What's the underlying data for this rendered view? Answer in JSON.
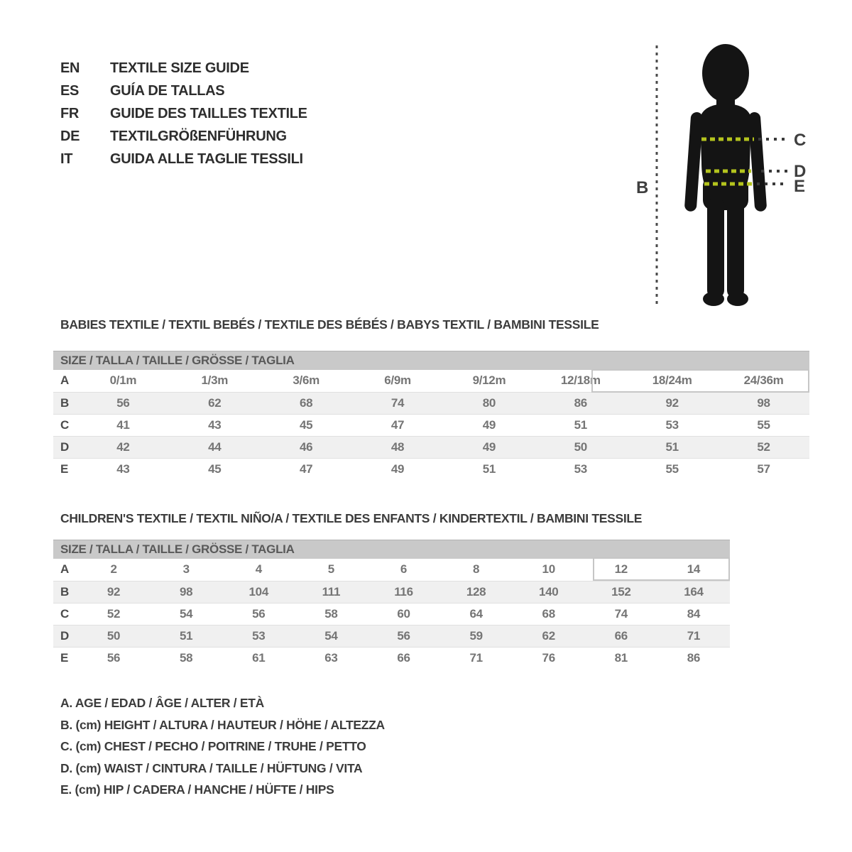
{
  "header": {
    "languages": [
      {
        "code": "EN",
        "label": "TEXTILE SIZE GUIDE"
      },
      {
        "code": "ES",
        "label": "GUÍA DE TALLAS"
      },
      {
        "code": "FR",
        "label": "GUIDE DES TAILLES TEXTILE"
      },
      {
        "code": "DE",
        "label": "TEXTILGRÖßENFÜHRUNG"
      },
      {
        "code": "IT",
        "label": "GUIDA ALLE TAGLIE TESSILI"
      }
    ]
  },
  "figure": {
    "height_label": "B",
    "chest_label": "C",
    "waist_label": "D",
    "hip_label": "E",
    "silhouette_color": "#141414",
    "measure_dash_color": "#b4c41e",
    "connector_dash_color": "#3a3a3a"
  },
  "babies_table": {
    "heading": "BABIES TEXTILE / TEXTIL BEBÉS / TEXTILE DES BÉBÉS / BABYS TEXTIL  / BAMBINI TESSILE",
    "size_header": "SIZE / TALLA / TAILLE / GRÖSSE / TAGLIA",
    "rows": [
      {
        "label": "A",
        "cells": [
          "0/1m",
          "1/3m",
          "3/6m",
          "6/9m",
          "9/12m",
          "12/18m",
          "18/24m",
          "24/36m"
        ]
      },
      {
        "label": "B",
        "cells": [
          "56",
          "62",
          "68",
          "74",
          "80",
          "86",
          "92",
          "98"
        ]
      },
      {
        "label": "C",
        "cells": [
          "41",
          "43",
          "45",
          "47",
          "49",
          "51",
          "53",
          "55"
        ]
      },
      {
        "label": "D",
        "cells": [
          "42",
          "44",
          "46",
          "48",
          "49",
          "50",
          "51",
          "52"
        ]
      },
      {
        "label": "E",
        "cells": [
          "43",
          "45",
          "47",
          "49",
          "51",
          "53",
          "55",
          "57"
        ]
      }
    ]
  },
  "children_table": {
    "heading": "CHILDREN'S TEXTILE / TEXTIL NIÑO/A / TEXTILE DES ENFANTS / KINDERTEXTIL / BAMBINI TESSILE",
    "size_header": "SIZE / TALLA / TAILLE / GRÖSSE / TAGLIA",
    "rows": [
      {
        "label": "A",
        "cells": [
          "2",
          "3",
          "4",
          "5",
          "6",
          "8",
          "10",
          "12",
          "14"
        ]
      },
      {
        "label": "B",
        "cells": [
          "92",
          "98",
          "104",
          "111",
          "116",
          "128",
          "140",
          "152",
          "164"
        ]
      },
      {
        "label": "C",
        "cells": [
          "52",
          "54",
          "56",
          "58",
          "60",
          "64",
          "68",
          "74",
          "84"
        ]
      },
      {
        "label": "D",
        "cells": [
          "50",
          "51",
          "53",
          "54",
          "56",
          "59",
          "62",
          "66",
          "71"
        ]
      },
      {
        "label": "E",
        "cells": [
          "56",
          "58",
          "61",
          "63",
          "66",
          "71",
          "76",
          "81",
          "86"
        ]
      }
    ]
  },
  "legend": {
    "items": [
      "A. AGE / EDAD / ÂGE / ALTER / ETÀ",
      "B. (cm) HEIGHT / ALTURA / HAUTEUR / HÖHE / ALTEZZA",
      "C. (cm) CHEST / PECHO / POITRINE / TRUHE / PETTO",
      "D. (cm) WAIST / CINTURA / TAILLE / HÜFTUNG / VITA",
      "E. (cm) HIP / CADERA / HANCHE / HÜFTE / HIPS"
    ]
  },
  "colors": {
    "table_header_bar": "#c9c9c9",
    "table_alt_row": "#f0f0f0",
    "table_value_text": "#757575",
    "heading_text": "#3c3c3c",
    "highlight_border": "#c6c6c6",
    "measure_line_green": "#b4c41e",
    "silhouette_black": "#141414"
  }
}
